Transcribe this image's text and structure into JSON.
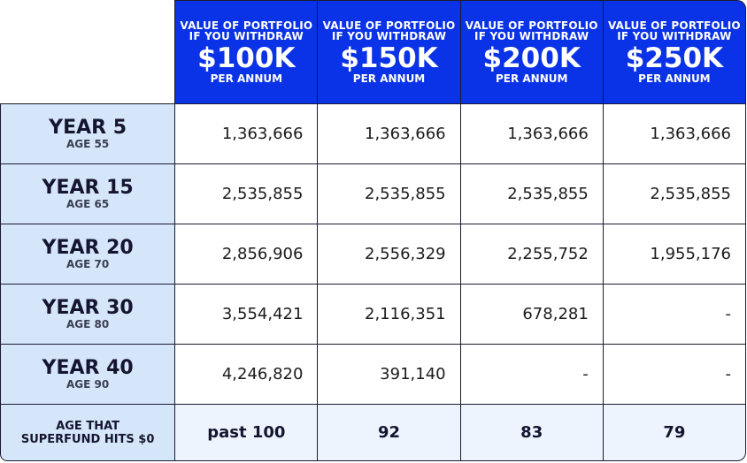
{
  "header": {
    "columns": [
      {
        "top": "VALUE OF PORTFOLIO IF YOU WITHDRAW",
        "amount": "$100K",
        "bottom": "PER ANNUM"
      },
      {
        "top": "VALUE OF PORTFOLIO IF YOU WITHDRAW",
        "amount": "$150K",
        "bottom": "PER ANNUM"
      },
      {
        "top": "VALUE OF PORTFOLIO IF YOU WITHDRAW",
        "amount": "$200K",
        "bottom": "PER ANNUM"
      },
      {
        "top": "VALUE OF PORTFOLIO IF YOU WITHDRAW",
        "amount": "$250K",
        "bottom": "PER ANNUM"
      }
    ]
  },
  "rows": [
    {
      "year": "YEAR 5",
      "age": "AGE 55",
      "values": [
        "1,363,666",
        "1,363,666",
        "1,363,666",
        "1,363,666"
      ]
    },
    {
      "year": "YEAR 15",
      "age": "AGE 65",
      "values": [
        "2,535,855",
        "2,535,855",
        "2,535,855",
        "2,535,855"
      ]
    },
    {
      "year": "YEAR 20",
      "age": "AGE 70",
      "values": [
        "2,856,906",
        "2,556,329",
        "2,255,752",
        "1,955,176"
      ]
    },
    {
      "year": "YEAR 30",
      "age": "AGE 80",
      "values": [
        "3,554,421",
        "2,116,351",
        "678,281",
        "-"
      ]
    },
    {
      "year": "YEAR 40",
      "age": "AGE 90",
      "values": [
        "4,246,820",
        "391,140",
        "-",
        "-"
      ]
    }
  ],
  "footer": {
    "label_line1": "AGE THAT",
    "label_line2": "SUPERFUND HITS $0",
    "values": [
      "past 100",
      "92",
      "83",
      "79"
    ]
  },
  "colors": {
    "header_bg": "#0a32e6",
    "label_bg": "#d5e6fb",
    "footer_bg": "#edf4fd",
    "border": "#1a1a2e"
  }
}
